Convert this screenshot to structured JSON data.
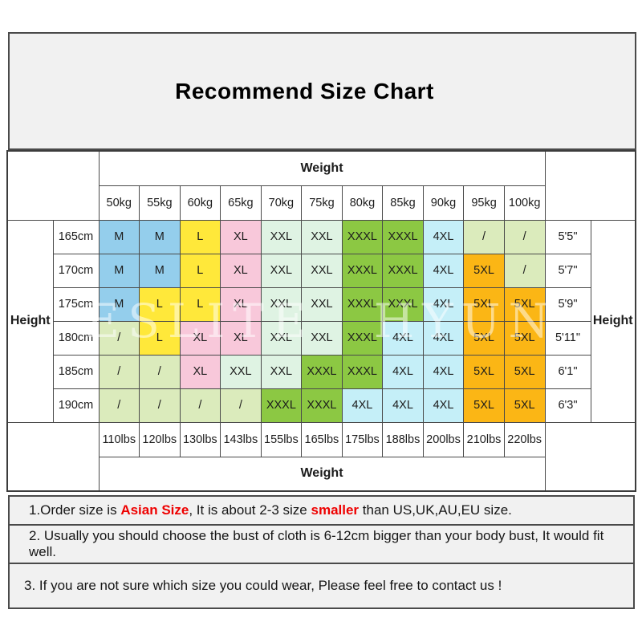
{
  "title": "Recommend Size Chart",
  "watermark": "ESLITE HYUN",
  "table": {
    "weight_label_top": "Weight",
    "weight_label_bottom": "Weight",
    "height_label_left": "Height",
    "height_label_right": "Height",
    "weights_kg": [
      "50kg",
      "55kg",
      "60kg",
      "65kg",
      "70kg",
      "75kg",
      "80kg",
      "85kg",
      "90kg",
      "95kg",
      "100kg"
    ],
    "weights_lbs": [
      "110lbs",
      "120lbs",
      "130lbs",
      "143lbs",
      "155lbs",
      "165lbs",
      "175lbs",
      "188lbs",
      "200lbs",
      "210lbs",
      "220lbs"
    ],
    "rows": [
      {
        "height_cm": "165cm",
        "height_ft": "5'5\"",
        "sizes": [
          "M",
          "M",
          "L",
          "XL",
          "XXL",
          "XXL",
          "XXXL",
          "XXXL",
          "4XL",
          "/",
          "/"
        ]
      },
      {
        "height_cm": "170cm",
        "height_ft": "5'7\"",
        "sizes": [
          "M",
          "M",
          "L",
          "XL",
          "XXL",
          "XXL",
          "XXXL",
          "XXXL",
          "4XL",
          "5XL",
          "/"
        ]
      },
      {
        "height_cm": "175cm",
        "height_ft": "5'9\"",
        "sizes": [
          "M",
          "L",
          "L",
          "XL",
          "XXL",
          "XXL",
          "XXXL",
          "XXXL",
          "4XL",
          "5XL",
          "5XL"
        ]
      },
      {
        "height_cm": "180cm",
        "height_ft": "5'11\"",
        "sizes": [
          "/",
          "L",
          "XL",
          "XL",
          "XXL",
          "XXL",
          "XXXL",
          "4XL",
          "4XL",
          "5XL",
          "5XL"
        ]
      },
      {
        "height_cm": "185cm",
        "height_ft": "6'1\"",
        "sizes": [
          "/",
          "/",
          "XL",
          "XXL",
          "XXL",
          "XXXL",
          "XXXL",
          "4XL",
          "4XL",
          "5XL",
          "5XL"
        ]
      },
      {
        "height_cm": "190cm",
        "height_ft": "6'3\"",
        "sizes": [
          "/",
          "/",
          "/",
          "/",
          "XXXL",
          "XXXL",
          "4XL",
          "4XL",
          "4XL",
          "5XL",
          "5XL"
        ]
      }
    ],
    "size_colors": {
      "M": "#94ceec",
      "L": "#ffe83a",
      "XL": "#f8c8da",
      "XXL": "#dff3e3",
      "XXXL": "#8cc843",
      "4XL": "#c5eff8",
      "5XL": "#fbb615",
      "/": "#dbebbc"
    }
  },
  "notes": [
    {
      "parts": [
        {
          "text": "1.Order size is ",
          "red": false
        },
        {
          "text": "Asian Size",
          "red": true
        },
        {
          "text": ", It is about 2-3 size ",
          "red": false
        },
        {
          "text": "smaller",
          "red": true
        },
        {
          "text": " than US,UK,AU,EU size.",
          "red": false
        }
      ]
    },
    {
      "parts": [
        {
          "text": "2. Usually you should choose the bust of cloth is 6-12cm bigger than your body bust, It would fit well.",
          "red": false
        }
      ]
    },
    {
      "parts": [
        {
          "text": "3. If you are not sure which size you could wear, Please feel free to contact us !",
          "red": false
        }
      ]
    }
  ]
}
